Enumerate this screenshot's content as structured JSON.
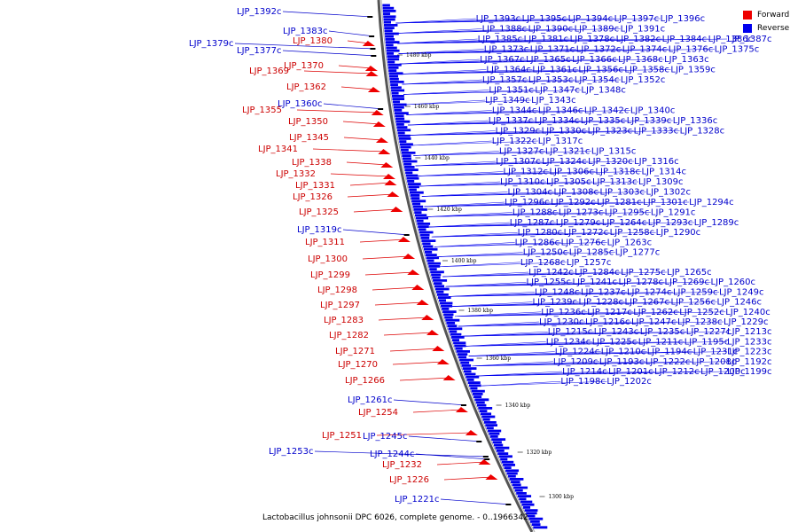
{
  "caption": "Lactobacillus johnsonii DPC 6026, complete genome. - 0..1966342",
  "legend": {
    "forward_label": "Forward",
    "reverse_label": "Reverse",
    "forward_color": "#ee0000",
    "reverse_color": "#0000ee"
  },
  "ticks": [
    "1480 kbp",
    "1460 kbp",
    "1440 kbp",
    "1420 kbp",
    "1400 kbp",
    "1380 kbp",
    "1360 kbp",
    "1340 kbp",
    "1320 kbp",
    "1300 kbp"
  ],
  "forward_labels": [
    "LJP_1380",
    "LJP_1369",
    "LJP_1370",
    "LJP_1362",
    "LJP_1355",
    "LJP_1350",
    "LJP_1345",
    "LJP_1341",
    "LJP_1338",
    "LJP_1332",
    "LJP_1331",
    "LJP_1326",
    "LJP_1325",
    "LJP_1311",
    "LJP_1300",
    "LJP_1299",
    "LJP_1298",
    "LJP_1297",
    "LJP_1283",
    "LJP_1282",
    "LJP_1271",
    "LJP_1270",
    "LJP_1266",
    "LJP_1254",
    "LJP_1251",
    "LJP_1232",
    "LJP_1226"
  ],
  "left_reverse_labels": [
    "LJP_1392c",
    "LJP_1383c",
    "LJP_1379c",
    "LJP_1377c",
    "LJP_1360c",
    "LJP_1319c",
    "LJP_1261c",
    "LJP_1245c",
    "LJP_1244c",
    "LJP_1253c",
    "LJP_1221c"
  ],
  "right_reverse_labels": [
    "LJP_1393c",
    "LJP_1395c",
    "LJP_1394c",
    "LJP_1397c",
    "LJP_1396c",
    "LJP_1388c",
    "LJP_1390c",
    "LJP_1389c",
    "LJP_1391c",
    "LJP_1385c",
    "LJP_1381c",
    "LJP_1378c",
    "LJP_1382c",
    "LJP_1384c",
    "LJP_1386c",
    "LJP_1387c",
    "LJP_1373c",
    "LJP_1371c",
    "LJP_1372c",
    "LJP_1374c",
    "LJP_1376c",
    "LJP_1375c",
    "LJP_1367c",
    "LJP_1365c",
    "LJP_1366c",
    "LJP_1368c",
    "LJP_1363c",
    "LJP_1364c",
    "LJP_1361c",
    "LJP_1356c",
    "LJP_1358c",
    "LJP_1359c",
    "LJP_1357c",
    "LJP_1353c",
    "LJP_1354c",
    "LJP_1352c",
    "LJP_1351c",
    "LJP_1347c",
    "LJP_1348c",
    "LJP_1349c",
    "LJP_1343c",
    "LJP_1344c",
    "LJP_1346c",
    "LJP_1342c",
    "LJP_1340c",
    "LJP_1337c",
    "LJP_1334c",
    "LJP_1335c",
    "LJP_1339c",
    "LJP_1336c",
    "LJP_1329c",
    "LJP_1330c",
    "LJP_1323c",
    "LJP_1333c",
    "LJP_1328c",
    "LJP_1322c",
    "LJP_1317c",
    "LJP_1327c",
    "LJP_1321c",
    "LJP_1315c",
    "LJP_1307c",
    "LJP_1324c",
    "LJP_1320c",
    "LJP_1316c",
    "LJP_1312c",
    "LJP_1306c",
    "LJP_1318c",
    "LJP_1314c",
    "LJP_1310c",
    "LJP_1305c",
    "LJP_1313c",
    "LJP_1309c",
    "LJP_1304c",
    "LJP_1308c",
    "LJP_1303c",
    "LJP_1302c",
    "LJP_1296c",
    "LJP_1292c",
    "LJP_1281c",
    "LJP_1301c",
    "LJP_1294c",
    "LJP_1288c",
    "LJP_1273c",
    "LJP_1295c",
    "LJP_1291c",
    "LJP_1287c",
    "LJP_1279c",
    "LJP_1264c",
    "LJP_1293c",
    "LJP_1289c",
    "LJP_1280c",
    "LJP_1272c",
    "LJP_1258c",
    "LJP_1290c",
    "LJP_1286c",
    "LJP_1276c",
    "LJP_1263c",
    "LJP_1250c",
    "LJP_1285c",
    "LJP_1277c",
    "LJP_1268c",
    "LJP_1257c",
    "LJP_1242c",
    "LJP_1284c",
    "LJP_1275c",
    "LJP_1265c",
    "LJP_1255c",
    "LJP_1241c",
    "LJP_1278c",
    "LJP_1269c",
    "LJP_1260c",
    "LJP_1248c",
    "LJP_1237c",
    "LJP_1274c",
    "LJP_1259c",
    "LJP_1249c",
    "LJP_1239c",
    "LJP_1228c",
    "LJP_1267c",
    "LJP_1256c",
    "LJP_1246c",
    "LJP_1236c",
    "LJP_1217c",
    "LJP_1262c",
    "LJP_1252c",
    "LJP_1240c",
    "LJP_1230c",
    "LJP_1216c",
    "LJP_1247c",
    "LJP_1238c",
    "LJP_1229c",
    "LJP_1215c",
    "LJP_1243c",
    "LJP_1235c",
    "LJP_1227c",
    "LJP_1213c",
    "LJP_1234c",
    "LJP_1225c",
    "LJP_1211c",
    "LJP_1195c",
    "LJP_1233c",
    "LJP_1224c",
    "LJP_1210c",
    "LJP_1194c",
    "LJP_1231c",
    "LJP_1223c",
    "LJP_1209c",
    "LJP_1193c",
    "LJP_1222c",
    "LJP_1208c",
    "LJP_1192c",
    "LJP_1214c",
    "LJP_1201c",
    "LJP_1212c",
    "LJP_1200c",
    "LJP_1199c",
    "LJP_1198c",
    "LJP_1202c"
  ]
}
